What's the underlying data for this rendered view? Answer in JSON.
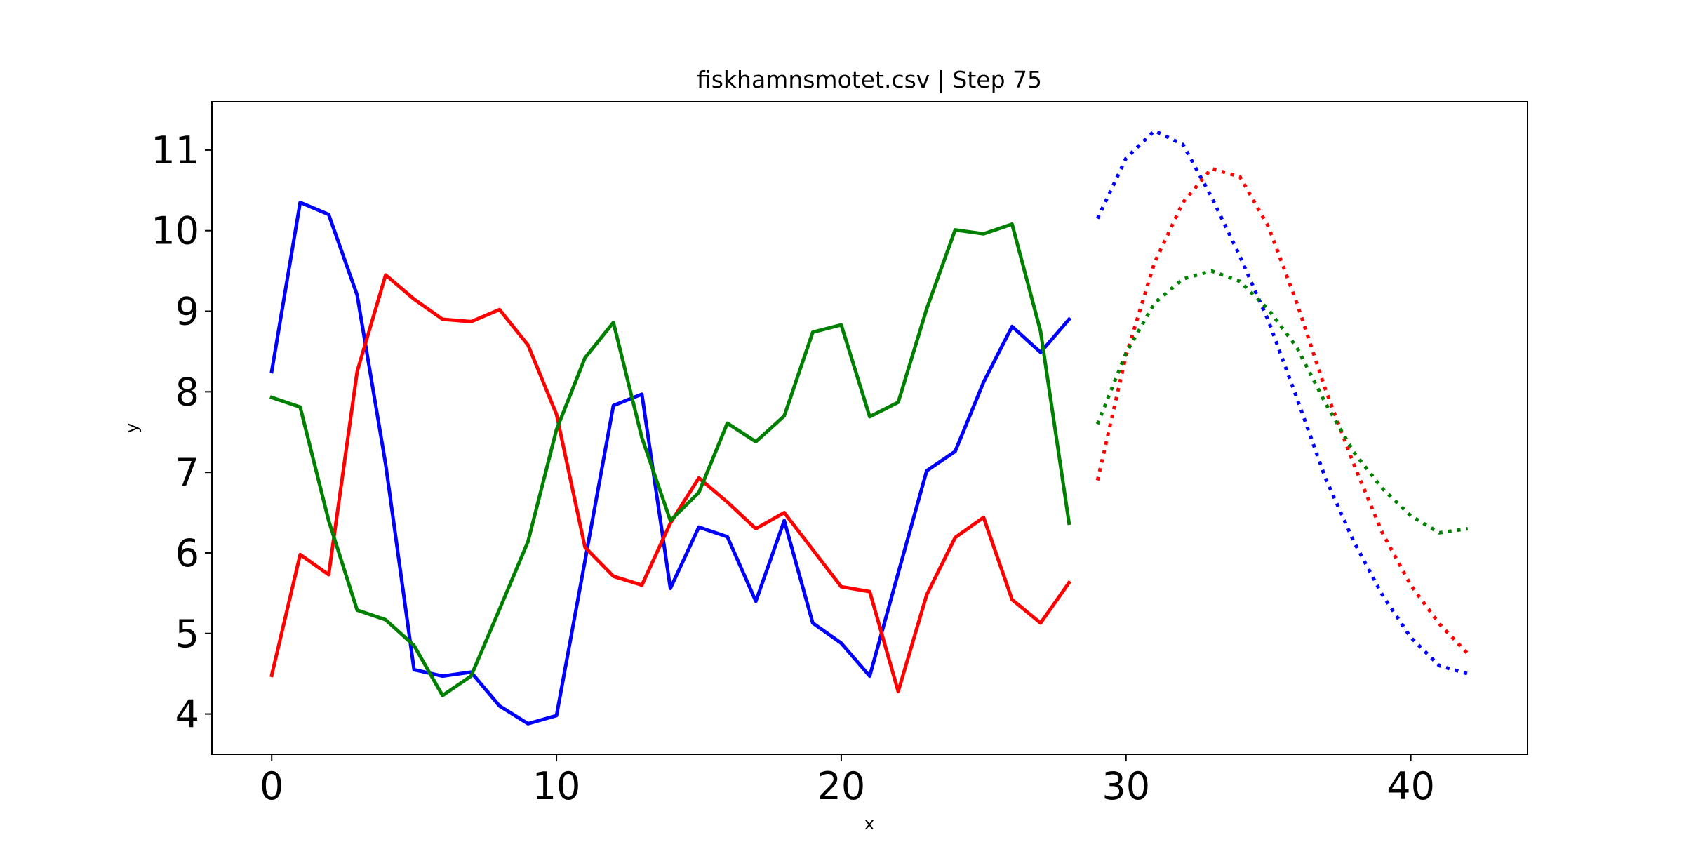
{
  "chart_data": {
    "type": "line",
    "title": "fiskhamnsmotet.csv | Step 75",
    "xlabel": "x",
    "ylabel": "y",
    "xlim": [
      -2.1,
      44.1
    ],
    "ylim": [
      3.5,
      11.6
    ],
    "xticks": [
      0,
      10,
      20,
      30,
      40
    ],
    "yticks": [
      4,
      5,
      6,
      7,
      8,
      9,
      10,
      11
    ],
    "grid": false,
    "series": [
      {
        "color": "#0000ff",
        "style": "solid",
        "x": [
          0,
          1,
          2,
          3,
          4,
          5,
          6,
          7,
          8,
          9,
          10,
          11,
          12,
          13,
          14,
          15,
          16,
          17,
          18,
          19,
          20,
          21,
          22,
          23,
          24,
          25,
          26,
          27,
          28
        ],
        "y": [
          8.25,
          10.35,
          10.2,
          9.2,
          7.1,
          4.55,
          4.47,
          4.52,
          4.1,
          3.88,
          3.98,
          5.9,
          7.83,
          7.97,
          5.56,
          6.32,
          6.2,
          5.4,
          6.4,
          5.13,
          4.88,
          4.47,
          5.75,
          7.02,
          7.26,
          8.12,
          8.81,
          8.49,
          8.9
        ]
      },
      {
        "color": "#ff0000",
        "style": "solid",
        "x": [
          0,
          1,
          2,
          3,
          4,
          5,
          6,
          7,
          8,
          9,
          10,
          11,
          12,
          13,
          14,
          15,
          16,
          17,
          18,
          19,
          20,
          21,
          22,
          23,
          24,
          25,
          26,
          27,
          28
        ],
        "y": [
          4.48,
          5.98,
          5.73,
          8.25,
          9.45,
          9.15,
          8.9,
          8.87,
          9.02,
          8.58,
          7.72,
          6.07,
          5.71,
          5.6,
          6.37,
          6.93,
          6.63,
          6.3,
          6.5,
          6.04,
          5.58,
          5.52,
          4.28,
          5.48,
          6.19,
          6.44,
          5.42,
          5.13,
          5.63
        ]
      },
      {
        "color": "#008000",
        "style": "solid",
        "x": [
          0,
          1,
          2,
          3,
          4,
          5,
          6,
          7,
          8,
          9,
          10,
          11,
          12,
          13,
          14,
          15,
          16,
          17,
          18,
          19,
          20,
          21,
          22,
          23,
          24,
          25,
          26,
          27,
          28
        ],
        "y": [
          7.93,
          7.81,
          6.4,
          5.29,
          5.17,
          4.85,
          4.23,
          4.47,
          5.3,
          6.14,
          7.53,
          8.42,
          8.86,
          7.43,
          6.4,
          6.75,
          7.61,
          7.38,
          7.7,
          8.74,
          8.83,
          7.69,
          7.87,
          9.03,
          10.01,
          9.96,
          10.08,
          8.75,
          6.37
        ]
      },
      {
        "color": "#0000ff",
        "style": "dotted",
        "x": [
          29,
          30,
          31,
          32,
          33,
          34,
          35,
          36,
          37,
          38,
          39,
          40,
          41,
          42
        ],
        "y": [
          10.15,
          10.9,
          11.24,
          11.07,
          10.42,
          9.68,
          8.88,
          7.92,
          6.93,
          6.14,
          5.48,
          4.95,
          4.6,
          4.5
        ]
      },
      {
        "color": "#ff0000",
        "style": "dotted",
        "x": [
          29,
          30,
          31,
          32,
          33,
          34,
          35,
          36,
          37,
          38,
          39,
          40,
          41,
          42
        ],
        "y": [
          6.9,
          8.45,
          9.6,
          10.35,
          10.77,
          10.67,
          10.05,
          9.1,
          8.03,
          7.1,
          6.25,
          5.6,
          5.12,
          4.75
        ]
      },
      {
        "color": "#008000",
        "style": "dotted",
        "x": [
          29,
          30,
          31,
          32,
          33,
          34,
          35,
          36,
          37,
          38,
          39,
          40,
          41,
          42
        ],
        "y": [
          7.6,
          8.48,
          9.1,
          9.4,
          9.5,
          9.37,
          9.02,
          8.55,
          7.86,
          7.25,
          6.8,
          6.46,
          6.25,
          6.3
        ]
      }
    ]
  }
}
